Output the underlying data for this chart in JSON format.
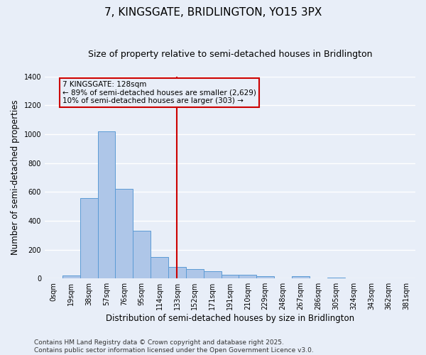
{
  "title": "7, KINGSGATE, BRIDLINGTON, YO15 3PX",
  "subtitle": "Size of property relative to semi-detached houses in Bridlington",
  "xlabel": "Distribution of semi-detached houses by size in Bridlington",
  "ylabel": "Number of semi-detached properties",
  "bar_labels": [
    "0sqm",
    "19sqm",
    "38sqm",
    "57sqm",
    "76sqm",
    "95sqm",
    "114sqm",
    "133sqm",
    "152sqm",
    "171sqm",
    "191sqm",
    "210sqm",
    "229sqm",
    "248sqm",
    "267sqm",
    "286sqm",
    "305sqm",
    "324sqm",
    "343sqm",
    "362sqm",
    "381sqm"
  ],
  "bar_values": [
    0,
    20,
    555,
    1020,
    620,
    330,
    150,
    80,
    65,
    50,
    28,
    28,
    15,
    0,
    18,
    0,
    7,
    0,
    0,
    0,
    0
  ],
  "bar_color": "#aec6e8",
  "bar_edge_color": "#5b9bd5",
  "vline_x_index": 7,
  "vline_color": "#cc0000",
  "annotation_line1": "7 KINGSGATE: 128sqm",
  "annotation_line2": "← 89% of semi-detached houses are smaller (2,629)",
  "annotation_line3": "10% of semi-detached houses are larger (303) →",
  "annotation_box_color": "#cc0000",
  "ylim": [
    0,
    1400
  ],
  "yticks": [
    0,
    200,
    400,
    600,
    800,
    1000,
    1200,
    1400
  ],
  "footer_line1": "Contains HM Land Registry data © Crown copyright and database right 2025.",
  "footer_line2": "Contains public sector information licensed under the Open Government Licence v3.0.",
  "bg_color": "#e8eef8",
  "grid_color": "#ffffff",
  "title_fontsize": 11,
  "subtitle_fontsize": 9,
  "axis_label_fontsize": 8.5,
  "tick_fontsize": 7,
  "footer_fontsize": 6.5,
  "annotation_fontsize": 7.5
}
